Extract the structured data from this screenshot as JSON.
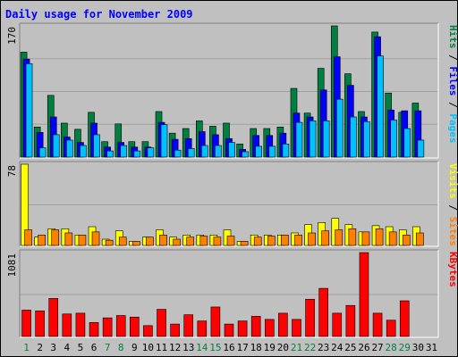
{
  "colors": {
    "page_bg": "#c0c0c0",
    "panel_bg": "#c0c0c0",
    "title": "#0000ff",
    "gridline": "#a0a0a0",
    "hits": "#008040",
    "files": "#0000ff",
    "pages": "#00c0ff",
    "visits": "#ffff00",
    "sites": "#ff8000",
    "kbytes": "#ff0000",
    "weekend_day": "#008040",
    "weekday": "#000000"
  },
  "chart_data": {
    "type": "bar",
    "title": "Daily usage for November 2009",
    "categories": [
      "1",
      "2",
      "3",
      "4",
      "5",
      "6",
      "7",
      "8",
      "9",
      "10",
      "11",
      "12",
      "13",
      "14",
      "15",
      "16",
      "17",
      "18",
      "19",
      "20",
      "21",
      "22",
      "23",
      "24",
      "25",
      "26",
      "27",
      "28",
      "29",
      "30",
      "31"
    ],
    "weekend_days": [
      "1",
      "7",
      "8",
      "14",
      "15",
      "21",
      "22",
      "28",
      "29"
    ],
    "panels": [
      {
        "id": "hits",
        "ymax_label": "170",
        "ymax": 170,
        "legend": [
          {
            "text": "Pages",
            "color": "#00c0ff"
          },
          {
            "text": " / ",
            "color": "#000000"
          },
          {
            "text": "Files",
            "color": "#0000ff"
          },
          {
            "text": " / ",
            "color": "#000000"
          },
          {
            "text": "Hits",
            "color": "#008040"
          }
        ],
        "series": [
          {
            "name": "Hits",
            "color": "#008040",
            "values": [
              136,
              39,
              80,
              44,
              36,
              58,
              20,
              43,
              20,
              20,
              59,
              31,
              37,
              47,
              40,
              44,
              17,
              37,
              37,
              39,
              89,
              57,
              115,
              170,
              108,
              59,
              162,
              83,
              58,
              70,
              0
            ]
          },
          {
            "name": "Files",
            "color": "#0000ff",
            "values": [
              127,
              32,
              52,
              26,
              19,
              44,
              13,
              19,
              13,
              13,
              45,
              23,
              24,
              33,
              29,
              24,
              10,
              28,
              28,
              31,
              57,
              52,
              87,
              130,
              93,
              52,
              156,
              61,
              60,
              60,
              0
            ]
          },
          {
            "name": "Pages",
            "color": "#00c0ff",
            "values": [
              121,
              12,
              29,
              22,
              15,
              29,
              8,
              15,
              8,
              12,
              42,
              9,
              11,
              15,
              15,
              19,
              7,
              14,
              14,
              17,
              45,
              47,
              47,
              75,
              52,
              46,
              131,
              48,
              37,
              22,
              0
            ]
          }
        ]
      },
      {
        "id": "visits",
        "ymax_label": "78",
        "ymax": 78,
        "legend": [
          {
            "text": "Sites",
            "color": "#ff8000"
          },
          {
            "text": " / ",
            "color": "#000000"
          },
          {
            "text": "Visits",
            "color": "#ffff00"
          }
        ],
        "series": [
          {
            "name": "Visits",
            "color": "#ffff00",
            "values": [
              78,
              8,
              16,
              16,
              10,
              18,
              6,
              14,
              4,
              8,
              15,
              8,
              10,
              10,
              10,
              15,
              4,
              10,
              10,
              10,
              12,
              20,
              22,
              26,
              20,
              13,
              19,
              18,
              15,
              18,
              0
            ]
          },
          {
            "name": "Sites",
            "color": "#ff8000",
            "values": [
              15,
              10,
              15,
              12,
              10,
              13,
              5,
              8,
              4,
              8,
              10,
              6,
              8,
              9,
              8,
              9,
              4,
              8,
              9,
              10,
              10,
              12,
              14,
              15,
              16,
              13,
              16,
              13,
              10,
              12,
              0
            ]
          }
        ]
      },
      {
        "id": "kbytes",
        "ymax_label": "1081",
        "ymax": 1081,
        "legend": [
          {
            "text": "KBytes",
            "color": "#ff0000"
          }
        ],
        "series": [
          {
            "name": "KBytes",
            "color": "#ff0000",
            "values": [
              340,
              330,
              490,
              290,
              300,
              180,
              240,
              270,
              250,
              140,
              350,
              160,
              280,
              200,
              380,
              160,
              200,
              260,
              220,
              300,
              220,
              480,
              620,
              300,
              400,
              1081,
              300,
              210,
              460,
              0,
              0
            ]
          }
        ]
      }
    ]
  }
}
